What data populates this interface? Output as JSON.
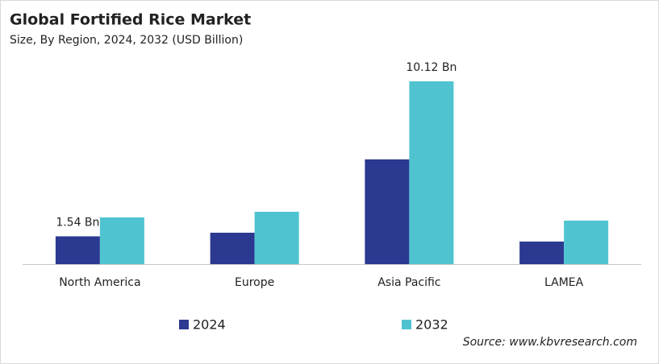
{
  "chart_data": {
    "type": "bar",
    "title": "Global Fortified Rice Market",
    "subtitle": "Size, By Region, 2024, 2032 (USD Billion)",
    "categories": [
      "North America",
      "Europe",
      "Asia Pacific",
      "LAMEA"
    ],
    "series": [
      {
        "name": "2024",
        "color": "#2b3990",
        "values": [
          1.54,
          1.74,
          5.8,
          1.25
        ],
        "value_labels": [
          "1.54 Bn",
          null,
          null,
          null
        ]
      },
      {
        "name": "2032",
        "color": "#4fc4d0",
        "values": [
          2.59,
          2.9,
          10.12,
          2.41
        ],
        "value_labels": [
          null,
          null,
          "10.12 Bn",
          null
        ]
      }
    ],
    "source": "Source: www.kbvresearch.com"
  }
}
